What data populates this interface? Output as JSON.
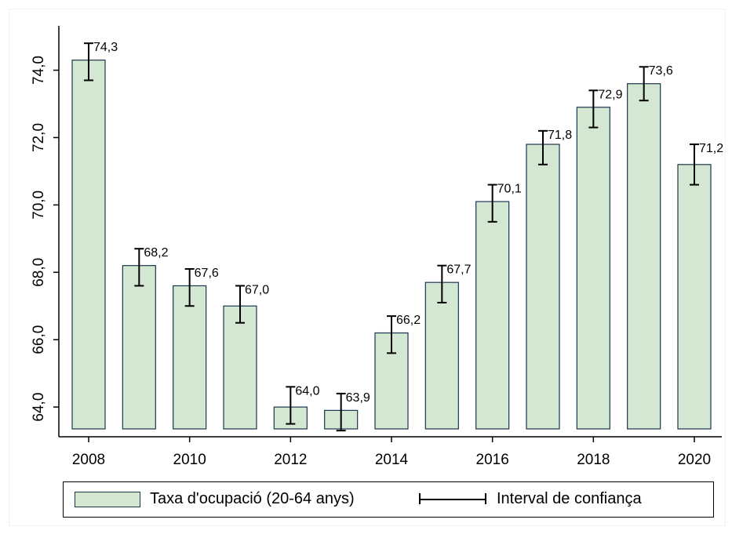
{
  "chart_data": {
    "type": "bar",
    "categories": [
      "2008",
      "2009",
      "2010",
      "2011",
      "2012",
      "2013",
      "2014",
      "2015",
      "2016",
      "2017",
      "2018",
      "2019",
      "2020"
    ],
    "series": [
      {
        "name": "Taxa d'ocupació (20-64 anys)",
        "values": [
          74.3,
          68.2,
          67.6,
          67.0,
          64.0,
          63.9,
          66.2,
          67.7,
          70.1,
          71.8,
          72.9,
          73.6,
          71.2
        ],
        "labels": [
          "74,3",
          "68,2",
          "67,6",
          "67,0",
          "64,0",
          "63,9",
          "66,2",
          "67,7",
          "70,1",
          "71,8",
          "72,9",
          "73,6",
          "71,2"
        ],
        "ci_low": [
          73.7,
          67.6,
          67.0,
          66.5,
          63.5,
          63.3,
          65.6,
          67.1,
          69.5,
          71.2,
          72.3,
          73.1,
          70.6
        ],
        "ci_high": [
          74.8,
          68.7,
          68.1,
          67.6,
          64.6,
          64.4,
          66.7,
          68.2,
          70.6,
          72.2,
          73.4,
          74.1,
          71.8
        ]
      }
    ],
    "x_ticks": [
      "2008",
      "2010",
      "2012",
      "2014",
      "2016",
      "2018",
      "2020"
    ],
    "y_ticks": [
      64.0,
      66.0,
      68.0,
      70.0,
      72.0,
      74.0
    ],
    "y_tick_labels": [
      "64,0",
      "66,0",
      "68,0",
      "70,0",
      "72,0",
      "74,0"
    ],
    "ylim": [
      63.35,
      75.2
    ],
    "title": "",
    "xlabel": "",
    "ylabel": "",
    "grid": false,
    "legend_position": "bottom",
    "legend": {
      "bar_label": "Taxa d'ocupació (20-64 anys)",
      "ci_label": "Interval de confiança"
    },
    "colors": {
      "bar_fill": "#d4e7d2",
      "bar_stroke": "#1a3550",
      "error_bar": "#000000"
    }
  }
}
